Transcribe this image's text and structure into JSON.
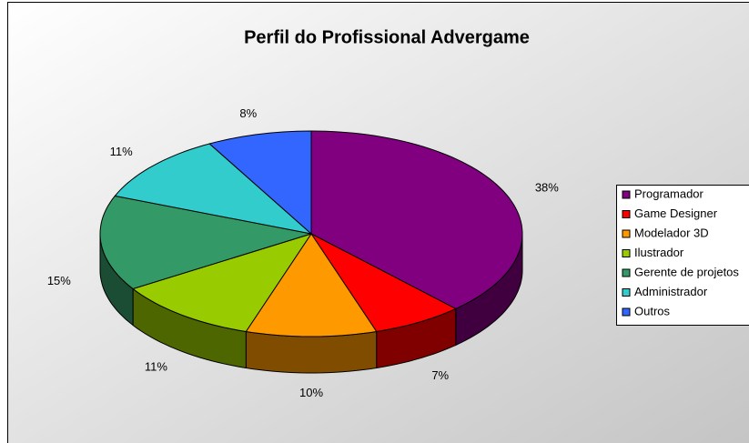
{
  "chart_data": {
    "type": "pie3d",
    "title": "Perfil do Profissional Advergame",
    "categories": [
      "Programador",
      "Game Designer",
      "Modelador 3D",
      "Ilustrador",
      "Gerente de projetos",
      "Administrador",
      "Outros"
    ],
    "values": [
      38,
      7,
      10,
      11,
      15,
      11,
      8
    ],
    "value_labels": [
      "38%",
      "7%",
      "10%",
      "11%",
      "15%",
      "11%",
      "8%"
    ],
    "colors": [
      "#800080",
      "#ff0000",
      "#ff9900",
      "#99cc00",
      "#339966",
      "#33cccc",
      "#3366ff"
    ],
    "legend": "right"
  }
}
